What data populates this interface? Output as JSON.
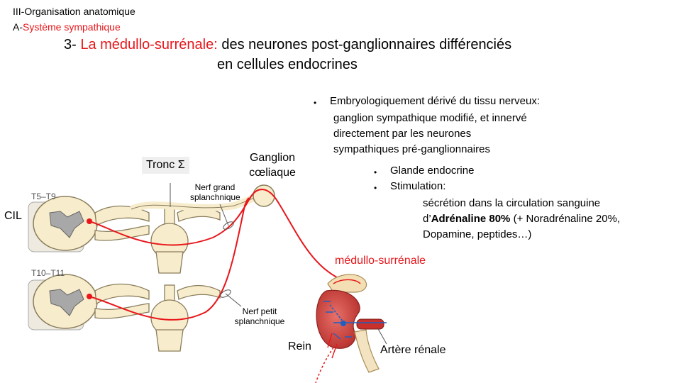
{
  "breadcrumb": {
    "line1": "III-Organisation anatomique",
    "line2_prefix": "A-",
    "line2_red": "Système sympathique"
  },
  "title": {
    "number": "3- ",
    "red_part": "La médullo-surrénale:",
    "rest_line1": " des neurones post-ganglionnaires différenciés",
    "line2": "en cellules endocrines"
  },
  "bullets": {
    "b1_line1": "Embryologiquement dérivé du tissu nerveux:",
    "b1_line2": "ganglion sympathique modifié, et innervé",
    "b1_line3": "directement par les neurones",
    "b1_line4": "sympathiques pré-ganglionnaires",
    "b2": "Glande endocrine",
    "b3": "Stimulation:",
    "b3_detail_line1": "sécrétion dans la circulation sanguine",
    "b3_detail_line2_prefix": "d’",
    "b3_detail_line2_bold": "Adrénaline 80%",
    "b3_detail_line2_rest": " (+ Noradrénaline 20%,",
    "b3_detail_line3": "Dopamine, peptides…)"
  },
  "diagram": {
    "label_t5_t9": "T5–T9",
    "label_t10_t11": "T10–T11",
    "label_cil": "CIL",
    "label_tronc": "Tronc Σ",
    "label_nerf_grand_1": "Nerf grand",
    "label_nerf_grand_2": "splanchnique",
    "label_ganglion_1": "Ganglion",
    "label_ganglion_2": "cœliaque",
    "label_nerf_petit_1": "Nerf petit",
    "label_nerf_petit_2": "splanchnique",
    "label_medullo": "médullo-surrénale",
    "label_rein": "Rein",
    "label_artere": "Artère rénale"
  },
  "colors": {
    "accent_red": "#e8161b",
    "nerve_fill": "#f7eccb",
    "nerve_stroke": "#9b8a5e",
    "kidney": "#d9534f",
    "artery": "#c9302c",
    "nerve_blue": "#1f5fbf"
  }
}
